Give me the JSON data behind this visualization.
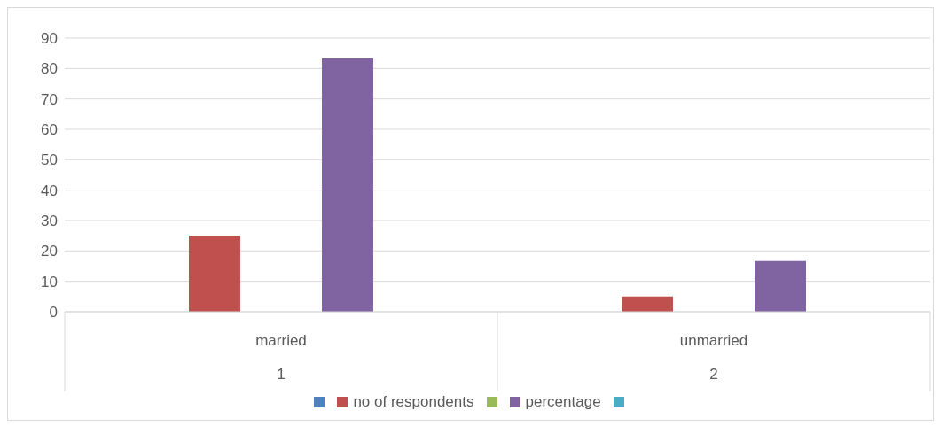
{
  "chart_data": {
    "type": "bar",
    "categories": [
      "married",
      "unmarried"
    ],
    "series": [
      {
        "color": "#4f81bd",
        "values": [
          null,
          null
        ]
      },
      {
        "name": "no of respondents",
        "color": "#c0504d",
        "values": [
          25,
          5
        ]
      },
      {
        "color": "#9bbb59",
        "values": [
          null,
          null
        ]
      },
      {
        "name": "percentage",
        "color": "#8064a2",
        "values": [
          83.3,
          16.7
        ]
      },
      {
        "color": "#4bacc6",
        "values": [
          null,
          null
        ]
      }
    ],
    "annotations": [
      "1",
      "2"
    ],
    "ylim": [
      0,
      90
    ],
    "yticks": [
      0,
      10,
      20,
      30,
      40,
      50,
      60,
      70,
      80,
      90
    ],
    "grid": "y",
    "legend": "bottom"
  }
}
